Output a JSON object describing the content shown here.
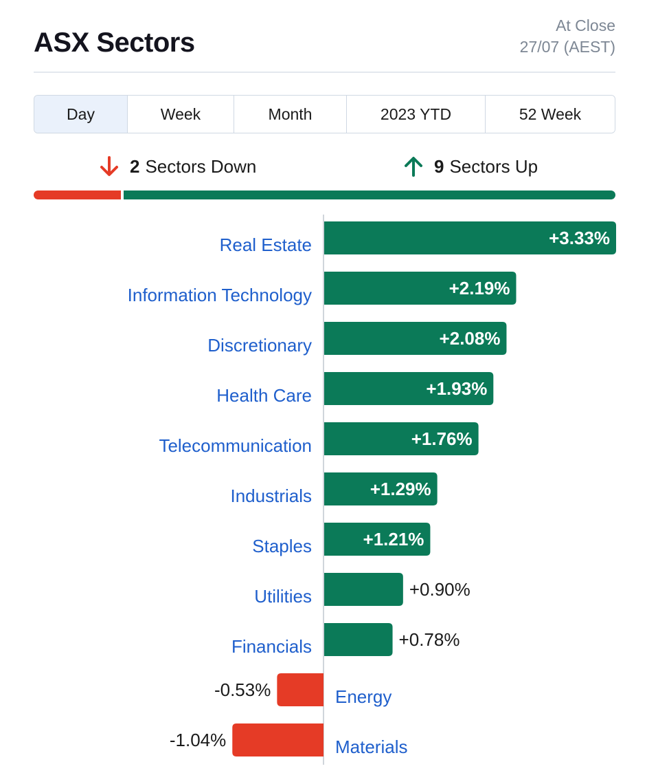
{
  "header": {
    "title": "ASX Sectors",
    "status": "At Close",
    "date": "27/07 (AEST)"
  },
  "tabs": [
    {
      "label": "Day",
      "active": true
    },
    {
      "label": "Week",
      "active": false
    },
    {
      "label": "Month",
      "active": false
    },
    {
      "label": "2023 YTD",
      "active": false
    },
    {
      "label": "52 Week",
      "active": false
    }
  ],
  "summary": {
    "down_count": "2",
    "down_label": "Sectors Down",
    "up_count": "9",
    "up_label": "Sectors Up"
  },
  "colors": {
    "up": "#0b7a58",
    "down": "#e53b26",
    "label": "#1f5fcc"
  },
  "chart_data": {
    "type": "bar",
    "orientation": "horizontal",
    "categories": [
      "Real Estate",
      "Information Technology",
      "Discretionary",
      "Health Care",
      "Telecommunication",
      "Industrials",
      "Staples",
      "Utilities",
      "Financials",
      "Energy",
      "Materials"
    ],
    "values": [
      3.33,
      2.19,
      2.08,
      1.93,
      1.76,
      1.29,
      1.21,
      0.9,
      0.78,
      -0.53,
      -1.04
    ],
    "value_labels": [
      "+3.33%",
      "+2.19%",
      "+2.08%",
      "+1.93%",
      "+1.76%",
      "+1.29%",
      "+1.21%",
      "+0.90%",
      "+0.78%",
      "-0.53%",
      "-1.04%"
    ],
    "xlim": [
      -1.04,
      3.33
    ],
    "grid": false,
    "legend": "none"
  }
}
